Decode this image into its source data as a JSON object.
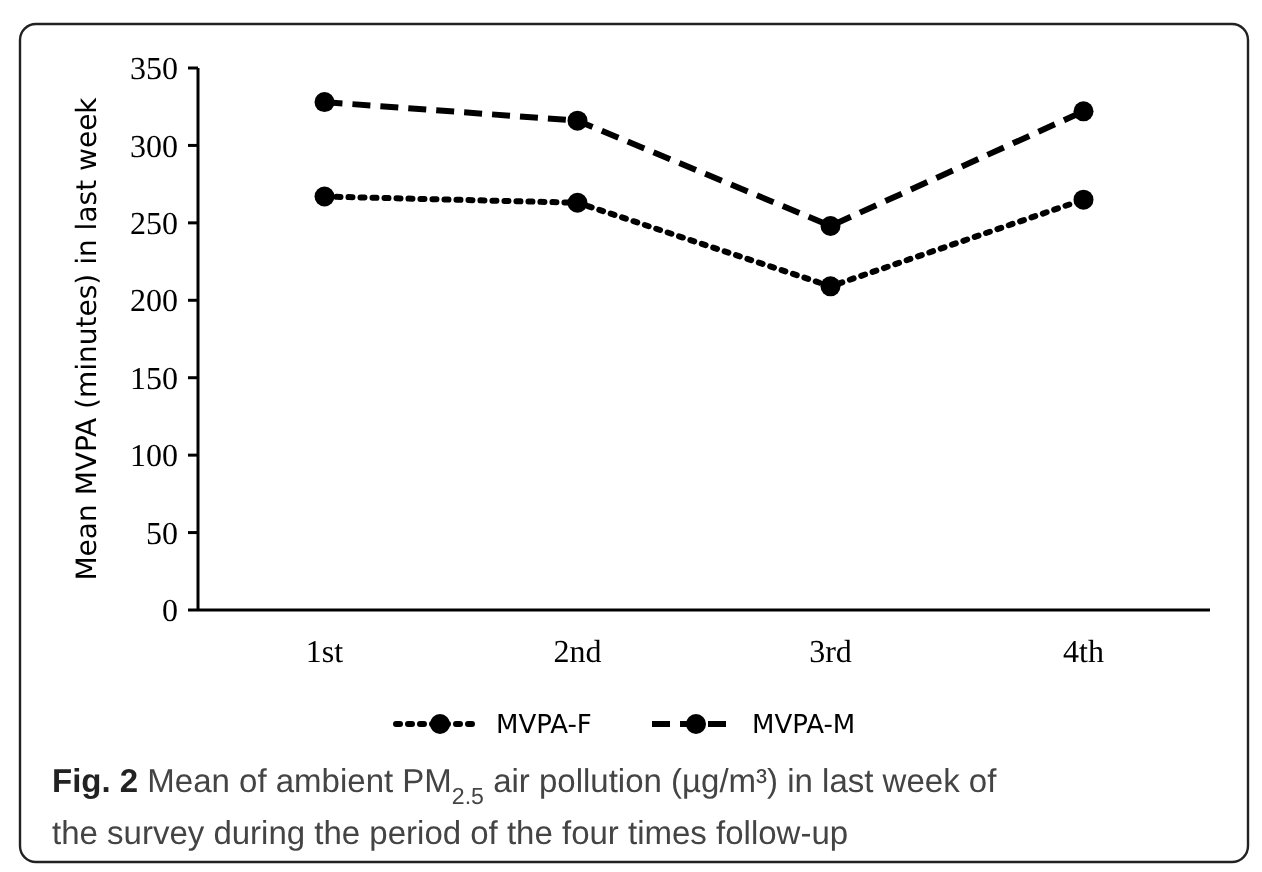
{
  "chart_data": {
    "type": "line",
    "title": "Fig. 2 Mean of ambient PM$_{2.5}$ air pollution (µg/m³) in last week of the survey during the period of the four times follow-up",
    "ylabel": "Mean MVPA (minutes) in last week",
    "categories": [
      "1st",
      "2nd",
      "3rd",
      "4th"
    ],
    "series": [
      {
        "name": "MVPA-F",
        "color": "#000000",
        "line_style": "dotted",
        "values": [
          267,
          263,
          209,
          265
        ]
      },
      {
        "name": "MVPA-M",
        "color": "#000000",
        "line_style": "dashed",
        "values": [
          328,
          316,
          248,
          322
        ]
      }
    ],
    "ylim": [
      0,
      350
    ],
    "yticks": [
      0,
      50,
      100,
      150,
      200,
      250,
      300,
      350
    ],
    "marker": "circle",
    "legend": "bottom",
    "grid": false
  }
}
